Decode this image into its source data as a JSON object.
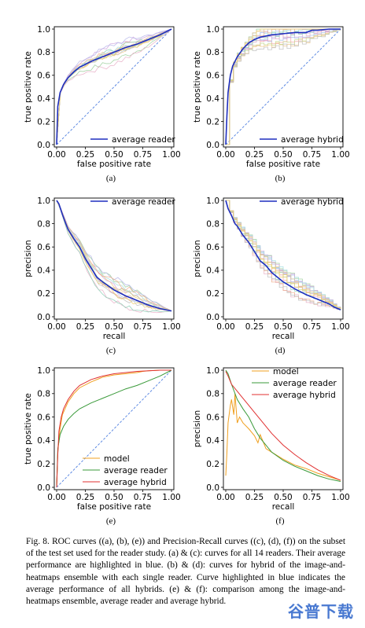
{
  "caption": "Fig. 8.  ROC curves ((a), (b), (e)) and Precision-Recall curves ((c), (d), (f)) on the subset of the test set used for the reader study. (a) & (c): curves for all 14 readers. Their average performance are highlighted in blue. (b) & (d): curves for hybrid of the image-and-heatmaps ensemble with each single reader. Curve highlighted in blue indicates the average performance of all hybrids. (e) & (f): comparison among the image-and-heatmaps ensemble, average reader and average hybrid.",
  "watermark": "谷普下载",
  "colors": {
    "blue": "#1f2fbf",
    "orange": "#f0a020",
    "green": "#3a9a3a",
    "red": "#e03030",
    "diag": "#5080e0"
  },
  "chart_data": [
    {
      "id": "a",
      "panel_label": "(a)",
      "type": "line",
      "xlabel": "false positive rate",
      "ylabel": "true positive rate",
      "xticks": [
        "0.00",
        "0.25",
        "0.50",
        "0.75",
        "1.00"
      ],
      "yticks": [
        "0.0",
        "0.2",
        "0.4",
        "0.6",
        "0.8",
        "1.0"
      ],
      "xlim": [
        0,
        1
      ],
      "ylim": [
        0,
        1
      ],
      "diagonal": true,
      "legend_position": "lower-right",
      "faint_curves": 14,
      "series": [
        {
          "name": "average reader",
          "color": "#1f2fbf",
          "x": [
            0,
            0.01,
            0.03,
            0.06,
            0.1,
            0.15,
            0.2,
            0.3,
            0.4,
            0.5,
            0.6,
            0.7,
            0.8,
            0.9,
            1.0
          ],
          "y": [
            0,
            0.33,
            0.45,
            0.52,
            0.58,
            0.63,
            0.67,
            0.72,
            0.76,
            0.8,
            0.84,
            0.87,
            0.91,
            0.95,
            1.0
          ]
        }
      ]
    },
    {
      "id": "b",
      "panel_label": "(b)",
      "type": "line",
      "xlabel": "false positive rate",
      "ylabel": "true positive rate",
      "xticks": [
        "0.00",
        "0.25",
        "0.50",
        "0.75",
        "1.00"
      ],
      "yticks": [
        "0.0",
        "0.2",
        "0.4",
        "0.6",
        "0.8",
        "1.0"
      ],
      "xlim": [
        0,
        1
      ],
      "ylim": [
        0,
        1
      ],
      "diagonal": true,
      "legend_position": "lower-right",
      "faint_curves": 14,
      "series": [
        {
          "name": "average hybrid",
          "color": "#1f2fbf",
          "x": [
            0,
            0.01,
            0.02,
            0.04,
            0.06,
            0.1,
            0.15,
            0.2,
            0.25,
            0.3,
            0.4,
            0.5,
            0.6,
            0.7,
            0.75,
            0.8,
            0.9,
            1.0
          ],
          "y": [
            0,
            0.25,
            0.45,
            0.6,
            0.68,
            0.76,
            0.83,
            0.88,
            0.91,
            0.93,
            0.95,
            0.96,
            0.97,
            0.97,
            0.99,
            0.99,
            1.0,
            1.0
          ]
        }
      ]
    },
    {
      "id": "c",
      "panel_label": "(c)",
      "type": "line",
      "xlabel": "recall",
      "ylabel": "precision",
      "xticks": [
        "0.00",
        "0.25",
        "0.50",
        "0.75",
        "1.00"
      ],
      "yticks": [
        "0.0",
        "0.2",
        "0.4",
        "0.6",
        "0.8",
        "1.0"
      ],
      "xlim": [
        0,
        1
      ],
      "ylim": [
        0,
        1
      ],
      "diagonal": false,
      "legend_position": "top-right",
      "faint_curves": 14,
      "series": [
        {
          "name": "average reader",
          "color": "#1f2fbf",
          "x": [
            0,
            0.02,
            0.05,
            0.08,
            0.1,
            0.15,
            0.2,
            0.25,
            0.3,
            0.35,
            0.4,
            0.5,
            0.6,
            0.7,
            0.8,
            0.9,
            1.0
          ],
          "y": [
            1.0,
            0.97,
            0.88,
            0.8,
            0.75,
            0.67,
            0.6,
            0.5,
            0.42,
            0.34,
            0.3,
            0.23,
            0.18,
            0.14,
            0.1,
            0.07,
            0.05
          ]
        }
      ]
    },
    {
      "id": "d",
      "panel_label": "(d)",
      "type": "line",
      "xlabel": "recall",
      "ylabel": "precision",
      "xticks": [
        "0.00",
        "0.25",
        "0.50",
        "0.75",
        "1.00"
      ],
      "yticks": [
        "0.0",
        "0.2",
        "0.4",
        "0.6",
        "0.8",
        "1.0"
      ],
      "xlim": [
        0,
        1
      ],
      "ylim": [
        0,
        1
      ],
      "diagonal": false,
      "legend_position": "top-right",
      "faint_curves": 14,
      "series": [
        {
          "name": "average hybrid",
          "color": "#1f2fbf",
          "x": [
            0,
            0.02,
            0.05,
            0.08,
            0.1,
            0.15,
            0.2,
            0.25,
            0.3,
            0.35,
            0.4,
            0.5,
            0.6,
            0.7,
            0.8,
            0.9,
            0.95,
            1.0
          ],
          "y": [
            1.0,
            0.93,
            0.87,
            0.8,
            0.78,
            0.7,
            0.64,
            0.56,
            0.48,
            0.44,
            0.38,
            0.3,
            0.24,
            0.19,
            0.15,
            0.11,
            0.08,
            0.06
          ]
        }
      ]
    },
    {
      "id": "e",
      "panel_label": "(e)",
      "type": "line",
      "xlabel": "false positive rate",
      "ylabel": "true positive rate",
      "xticks": [
        "0.00",
        "0.25",
        "0.50",
        "0.75",
        "1.00"
      ],
      "yticks": [
        "0.0",
        "0.2",
        "0.4",
        "0.6",
        "0.8",
        "1.0"
      ],
      "xlim": [
        0,
        1
      ],
      "ylim": [
        0,
        1
      ],
      "diagonal": true,
      "legend_position": "lower-right",
      "faint_curves": 0,
      "series": [
        {
          "name": "model",
          "color": "#f0a020",
          "x": [
            0,
            0.01,
            0.03,
            0.05,
            0.1,
            0.15,
            0.2,
            0.3,
            0.4,
            0.5,
            0.6,
            0.7,
            0.75,
            0.8,
            0.9,
            1.0
          ],
          "y": [
            0,
            0.3,
            0.5,
            0.62,
            0.73,
            0.8,
            0.85,
            0.9,
            0.94,
            0.96,
            0.97,
            0.98,
            0.99,
            0.995,
            1.0,
            1.0
          ]
        },
        {
          "name": "average reader",
          "color": "#3a9a3a",
          "x": [
            0,
            0.01,
            0.03,
            0.06,
            0.1,
            0.15,
            0.2,
            0.3,
            0.4,
            0.5,
            0.6,
            0.7,
            0.8,
            0.9,
            1.0
          ],
          "y": [
            0,
            0.33,
            0.45,
            0.52,
            0.58,
            0.63,
            0.67,
            0.72,
            0.76,
            0.8,
            0.84,
            0.87,
            0.91,
            0.95,
            1.0
          ]
        },
        {
          "name": "average hybrid",
          "color": "#e03030",
          "x": [
            0,
            0.01,
            0.02,
            0.04,
            0.06,
            0.1,
            0.15,
            0.2,
            0.3,
            0.4,
            0.5,
            0.6,
            0.7,
            0.8,
            0.9,
            1.0
          ],
          "y": [
            0,
            0.28,
            0.48,
            0.6,
            0.67,
            0.75,
            0.82,
            0.87,
            0.92,
            0.95,
            0.97,
            0.98,
            0.99,
            0.995,
            1.0,
            1.0
          ]
        }
      ]
    },
    {
      "id": "f",
      "panel_label": "(f)",
      "type": "line",
      "xlabel": "recall",
      "ylabel": "precision",
      "xticks": [
        "0.00",
        "0.25",
        "0.50",
        "0.75",
        "1.00"
      ],
      "yticks": [
        "0.0",
        "0.2",
        "0.4",
        "0.6",
        "0.8",
        "1.0"
      ],
      "xlim": [
        0,
        1
      ],
      "ylim": [
        0,
        1
      ],
      "diagonal": false,
      "legend_position": "top-right",
      "faint_curves": 0,
      "series": [
        {
          "name": "model",
          "color": "#f0a020",
          "x": [
            0,
            0.01,
            0.02,
            0.04,
            0.05,
            0.07,
            0.08,
            0.1,
            0.12,
            0.15,
            0.2,
            0.25,
            0.28,
            0.3,
            0.35,
            0.4,
            0.5,
            0.6,
            0.7,
            0.8,
            0.9,
            1.0
          ],
          "y": [
            0.1,
            0.3,
            0.55,
            0.7,
            0.75,
            0.62,
            0.8,
            0.55,
            0.6,
            0.55,
            0.5,
            0.44,
            0.38,
            0.45,
            0.33,
            0.3,
            0.24,
            0.19,
            0.16,
            0.12,
            0.09,
            0.06
          ]
        },
        {
          "name": "average reader",
          "color": "#3a9a3a",
          "x": [
            0,
            0.02,
            0.05,
            0.1,
            0.15,
            0.2,
            0.25,
            0.3,
            0.4,
            0.5,
            0.6,
            0.7,
            0.8,
            0.9,
            1.0
          ],
          "y": [
            1.0,
            0.97,
            0.88,
            0.75,
            0.67,
            0.6,
            0.5,
            0.42,
            0.3,
            0.23,
            0.18,
            0.14,
            0.1,
            0.07,
            0.05
          ]
        },
        {
          "name": "average hybrid",
          "color": "#e03030",
          "x": [
            0,
            0.02,
            0.05,
            0.1,
            0.15,
            0.2,
            0.25,
            0.3,
            0.4,
            0.5,
            0.6,
            0.7,
            0.8,
            0.9,
            1.0
          ],
          "y": [
            0.99,
            0.95,
            0.88,
            0.82,
            0.76,
            0.7,
            0.64,
            0.58,
            0.46,
            0.36,
            0.28,
            0.21,
            0.15,
            0.1,
            0.06
          ]
        }
      ]
    }
  ]
}
